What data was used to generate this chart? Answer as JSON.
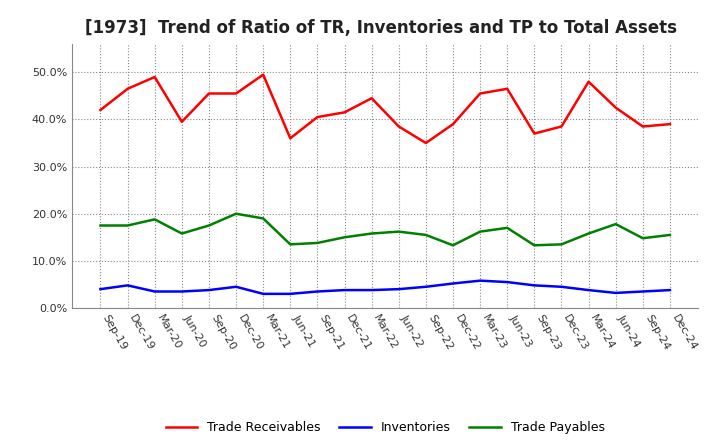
{
  "title": "[1973]  Trend of Ratio of TR, Inventories and TP to Total Assets",
  "x_labels": [
    "Sep-19",
    "Dec-19",
    "Mar-20",
    "Jun-20",
    "Sep-20",
    "Dec-20",
    "Mar-21",
    "Jun-21",
    "Sep-21",
    "Dec-21",
    "Mar-22",
    "Jun-22",
    "Sep-22",
    "Dec-22",
    "Mar-23",
    "Jun-23",
    "Sep-23",
    "Dec-23",
    "Mar-24",
    "Jun-24",
    "Sep-24",
    "Dec-24"
  ],
  "trade_receivables": [
    0.42,
    0.465,
    0.49,
    0.395,
    0.455,
    0.455,
    0.495,
    0.36,
    0.405,
    0.415,
    0.445,
    0.385,
    0.35,
    0.39,
    0.455,
    0.465,
    0.37,
    0.385,
    0.48,
    0.425,
    0.385,
    0.39
  ],
  "inventories": [
    0.04,
    0.048,
    0.035,
    0.035,
    0.038,
    0.045,
    0.03,
    0.03,
    0.035,
    0.038,
    0.038,
    0.04,
    0.045,
    0.052,
    0.058,
    0.055,
    0.048,
    0.045,
    0.038,
    0.032,
    0.035,
    0.038
  ],
  "trade_payables": [
    0.175,
    0.175,
    0.188,
    0.158,
    0.175,
    0.2,
    0.19,
    0.135,
    0.138,
    0.15,
    0.158,
    0.162,
    0.155,
    0.133,
    0.162,
    0.17,
    0.133,
    0.135,
    0.158,
    0.178,
    0.148,
    0.155
  ],
  "line_color_tr": "#FF0000",
  "line_color_inv": "#0000FF",
  "line_color_tp": "#008000",
  "ylim": [
    0.0,
    0.56
  ],
  "yticks": [
    0.0,
    0.1,
    0.2,
    0.3,
    0.4,
    0.5
  ],
  "background_color": "#FFFFFF",
  "grid_color": "#888888",
  "title_fontsize": 12,
  "tick_fontsize": 8,
  "legend_fontsize": 9,
  "line_width": 1.8
}
